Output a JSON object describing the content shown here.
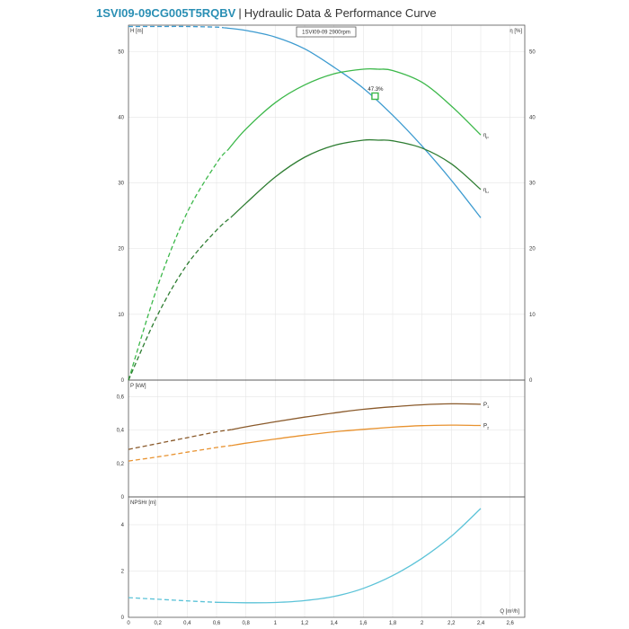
{
  "header": {
    "model": "1SVI09-09CG005T5RQBV",
    "separator": "|",
    "description": "Hydraulic Data & Performance Curve"
  },
  "chart_data": {
    "legend_box": "1SVI09-09 2900rpm",
    "x": {
      "label": "Q [m³/h]",
      "ticks": [
        "0",
        "0,2",
        "0,4",
        "0,6",
        "0,8",
        "1",
        "1,2",
        "1,4",
        "1,6",
        "1,8",
        "2",
        "2,2",
        "2,4",
        "2,6"
      ],
      "range": [
        0,
        2.7
      ]
    },
    "panels": [
      {
        "name": "head-efficiency",
        "type": "line",
        "y_left": {
          "label": "H [m]",
          "ticks": [
            "0",
            "10",
            "20",
            "30",
            "40",
            "50"
          ],
          "range": [
            0,
            54
          ]
        },
        "y_right": {
          "label": "η [%]",
          "ticks": [
            "0",
            "10",
            "20",
            "30",
            "40",
            "50"
          ],
          "range": [
            0,
            54
          ]
        },
        "annotation": {
          "text": "47.3%",
          "x": 1.68,
          "y": 43.2
        },
        "series": [
          {
            "name": "H",
            "color": "#3d9bd0",
            "axis": "left",
            "dashed_until": 0.65,
            "x": [
              0,
              0.2,
              0.4,
              0.6,
              0.65,
              0.8,
              1.0,
              1.2,
              1.4,
              1.6,
              1.8,
              2.0,
              2.2,
              2.4
            ],
            "y": [
              53.8,
              53.8,
              53.8,
              53.7,
              53.6,
              53.2,
              52.2,
              50.4,
              47.6,
              44.4,
              40.3,
              35.6,
              30.4,
              24.7
            ]
          },
          {
            "name": "ηp",
            "label_main": "η",
            "label_sub": "p",
            "color": "#3cb84a",
            "axis": "right",
            "dashed_until": 0.68,
            "x": [
              0,
              0.2,
              0.4,
              0.6,
              0.68,
              0.8,
              1.0,
              1.2,
              1.4,
              1.6,
              1.7,
              1.8,
              2.0,
              2.2,
              2.4
            ],
            "y": [
              0,
              14.4,
              25.5,
              33.0,
              35.1,
              38.2,
              42.2,
              44.9,
              46.6,
              47.3,
              47.3,
              47.1,
              45.3,
              41.7,
              37.3
            ]
          },
          {
            "name": "ηu",
            "label_main": "η",
            "label_sub": "u",
            "color": "#2e7d32",
            "axis": "right",
            "dashed_until": 0.7,
            "x": [
              0,
              0.2,
              0.4,
              0.6,
              0.7,
              0.8,
              1.0,
              1.2,
              1.4,
              1.6,
              1.7,
              1.8,
              2.0,
              2.2,
              2.4
            ],
            "y": [
              0,
              10.0,
              17.6,
              22.8,
              24.8,
              26.9,
              30.9,
              33.9,
              35.7,
              36.5,
              36.5,
              36.4,
              35.3,
              32.9,
              29.0
            ]
          }
        ]
      },
      {
        "name": "power",
        "type": "line",
        "y_left": {
          "label": "P [kW]",
          "ticks": [
            "0",
            "0,2",
            "0,4",
            "0,6"
          ],
          "range": [
            0,
            0.7
          ]
        },
        "series": [
          {
            "name": "P1",
            "label_main": "P",
            "label_sub": "1",
            "color": "#8a5a2b",
            "dashed_until": 0.7,
            "x": [
              0,
              0.2,
              0.4,
              0.6,
              0.7,
              0.8,
              1.0,
              1.2,
              1.4,
              1.6,
              1.8,
              2.0,
              2.2,
              2.4
            ],
            "y": [
              0.285,
              0.32,
              0.355,
              0.39,
              0.403,
              0.42,
              0.45,
              0.478,
              0.503,
              0.525,
              0.54,
              0.552,
              0.558,
              0.555
            ]
          },
          {
            "name": "P2",
            "label_main": "P",
            "label_sub": "2",
            "color": "#e8922f",
            "dashed_until": 0.7,
            "x": [
              0,
              0.2,
              0.4,
              0.6,
              0.7,
              0.8,
              1.0,
              1.2,
              1.4,
              1.6,
              1.8,
              2.0,
              2.2,
              2.4
            ],
            "y": [
              0.215,
              0.24,
              0.268,
              0.296,
              0.308,
              0.322,
              0.347,
              0.37,
              0.39,
              0.405,
              0.418,
              0.427,
              0.43,
              0.428
            ]
          }
        ]
      },
      {
        "name": "npsh",
        "type": "line",
        "y_left": {
          "label": "NPSHr [m]",
          "ticks": [
            "0",
            "2",
            "4"
          ],
          "range": [
            0,
            5.2
          ]
        },
        "series": [
          {
            "name": "NPSHr",
            "color": "#5cc3d8",
            "dashed_until": 0.6,
            "x": [
              0,
              0.2,
              0.4,
              0.6,
              0.8,
              1.0,
              1.2,
              1.4,
              1.6,
              1.8,
              2.0,
              2.2,
              2.4
            ],
            "y": [
              0.85,
              0.78,
              0.71,
              0.65,
              0.63,
              0.64,
              0.72,
              0.9,
              1.25,
              1.8,
              2.55,
              3.5,
              4.7
            ]
          }
        ]
      }
    ]
  }
}
